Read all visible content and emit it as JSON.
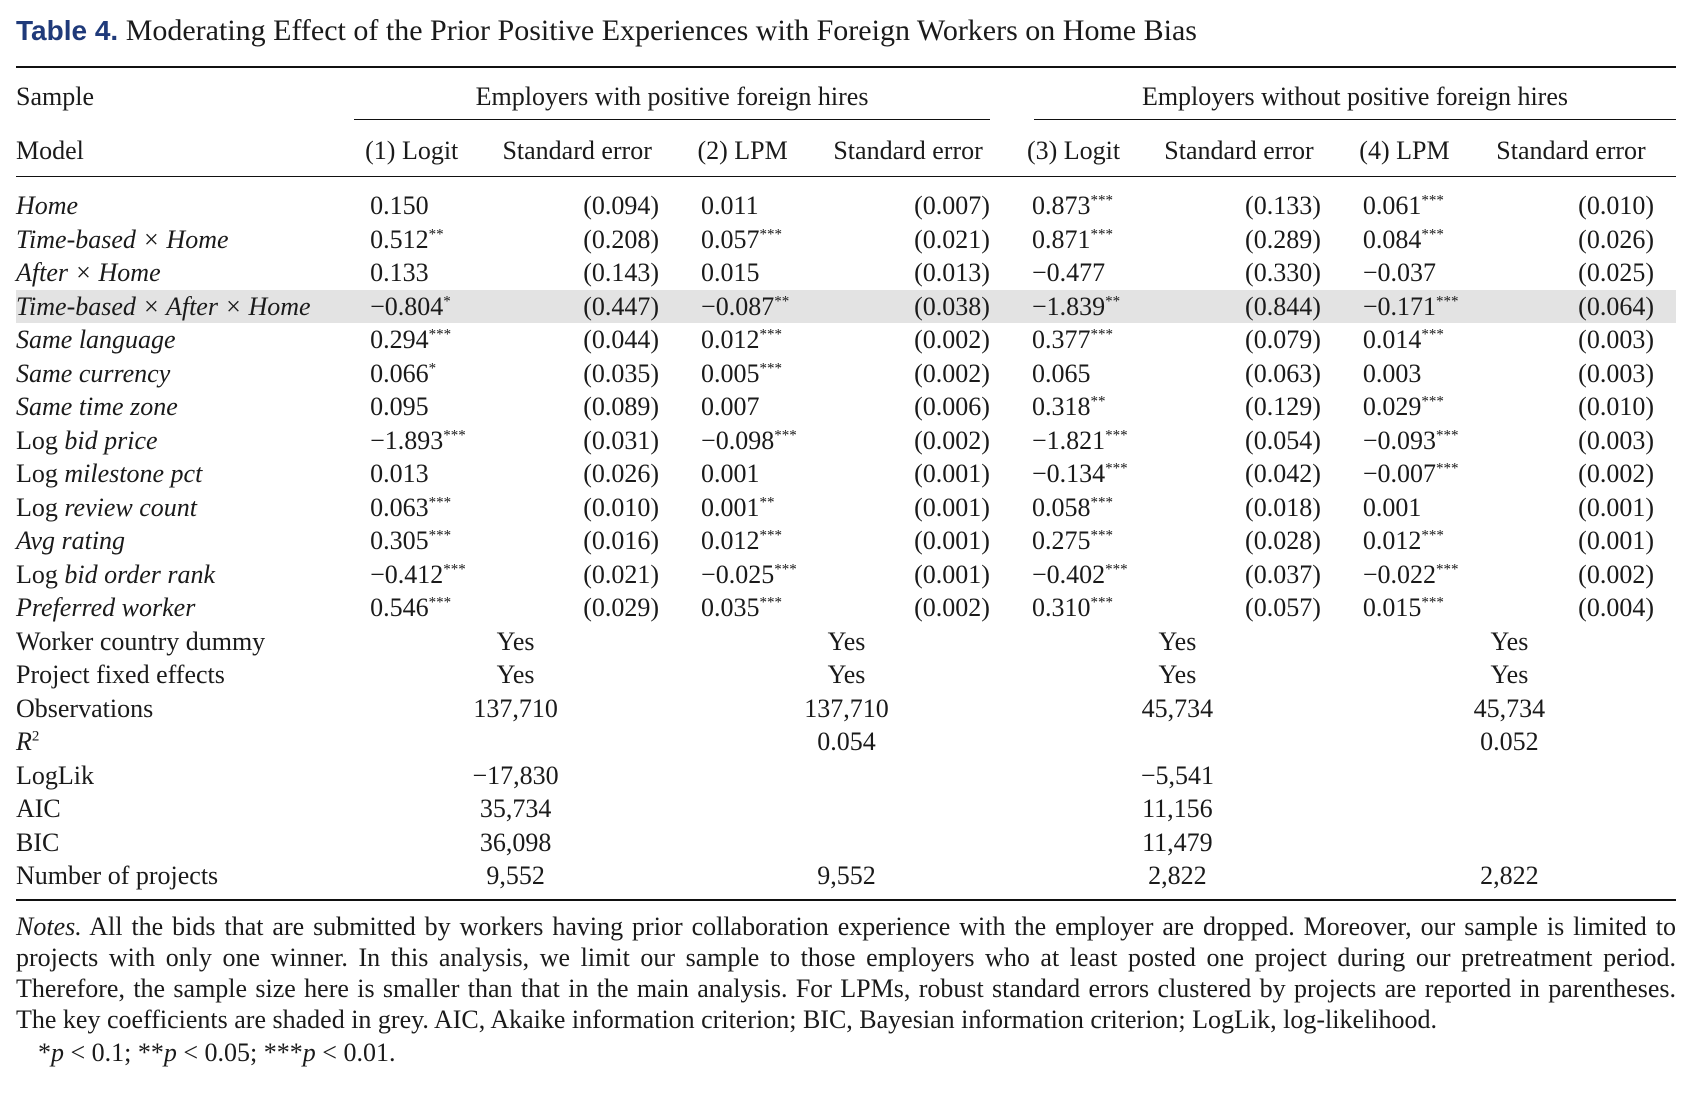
{
  "caption": {
    "label": "Table 4.",
    "title": "Moderating Effect of the Prior Positive Experiences with Foreign Workers on Home Bias"
  },
  "header": {
    "sample_label": "Sample",
    "group1": "Employers with positive foreign hires",
    "group2": "Employers without positive foreign hires",
    "model_label": "Model",
    "columns": [
      "(1) Logit",
      "Standard error",
      "(2) LPM",
      "Standard error",
      "(3) Logit",
      "Standard error",
      "(4) LPM",
      "Standard error"
    ]
  },
  "rows": [
    {
      "label": "Home",
      "v": [
        "0.150",
        "(0.094)",
        "0.011",
        "(0.007)",
        "0.873***",
        "(0.133)",
        "0.061***",
        "(0.010)"
      ]
    },
    {
      "label": "Time-based × Home",
      "v": [
        "0.512**",
        "(0.208)",
        "0.057***",
        "(0.021)",
        "0.871***",
        "(0.289)",
        "0.084***",
        "(0.026)"
      ]
    },
    {
      "label": "After × Home",
      "v": [
        "0.133",
        "(0.143)",
        "0.015",
        "(0.013)",
        "−0.477",
        "(0.330)",
        "−0.037",
        "(0.025)"
      ]
    },
    {
      "label": "Time-based × After × Home",
      "v": [
        "−0.804*",
        "(0.447)",
        "−0.087**",
        "(0.038)",
        "−1.839**",
        "(0.844)",
        "−0.171***",
        "(0.064)"
      ]
    },
    {
      "label": "Same language",
      "v": [
        "0.294***",
        "(0.044)",
        "0.012***",
        "(0.002)",
        "0.377***",
        "(0.079)",
        "0.014***",
        "(0.003)"
      ]
    },
    {
      "label": "Same currency",
      "v": [
        "0.066*",
        "(0.035)",
        "0.005***",
        "(0.002)",
        "0.065",
        "(0.063)",
        "0.003",
        "(0.003)"
      ]
    },
    {
      "label": "Same time zone",
      "v": [
        "0.095",
        "(0.089)",
        "0.007",
        "(0.006)",
        "0.318**",
        "(0.129)",
        "0.029***",
        "(0.010)"
      ]
    },
    {
      "label_pre": "Log ",
      "label_it": "bid price",
      "v": [
        "−1.893***",
        "(0.031)",
        "−0.098***",
        "(0.002)",
        "−1.821***",
        "(0.054)",
        "−0.093***",
        "(0.003)"
      ]
    },
    {
      "label_pre": "Log ",
      "label_it": "milestone pct",
      "v": [
        "0.013",
        "(0.026)",
        "0.001",
        "(0.001)",
        "−0.134***",
        "(0.042)",
        "−0.007***",
        "(0.002)"
      ]
    },
    {
      "label_pre": "Log ",
      "label_it": "review count",
      "v": [
        "0.063***",
        "(0.010)",
        "0.001**",
        "(0.001)",
        "0.058***",
        "(0.018)",
        "0.001",
        "(0.001)"
      ]
    },
    {
      "label": "Avg rating",
      "v": [
        "0.305***",
        "(0.016)",
        "0.012***",
        "(0.001)",
        "0.275***",
        "(0.028)",
        "0.012***",
        "(0.001)"
      ]
    },
    {
      "label_pre": "Log ",
      "label_it": "bid order rank",
      "v": [
        "−0.412***",
        "(0.021)",
        "−0.025***",
        "(0.001)",
        "−0.402***",
        "(0.037)",
        "−0.022***",
        "(0.002)"
      ]
    },
    {
      "label": "Preferred worker",
      "v": [
        "0.546***",
        "(0.029)",
        "0.035***",
        "(0.002)",
        "0.310***",
        "(0.057)",
        "0.015***",
        "(0.004)"
      ]
    }
  ],
  "summary": [
    {
      "label": "Worker country dummy",
      "v": [
        "Yes",
        "Yes",
        "Yes",
        "Yes"
      ]
    },
    {
      "label": "Project fixed effects",
      "v": [
        "Yes",
        "Yes",
        "Yes",
        "Yes"
      ]
    },
    {
      "label": "Observations",
      "v": [
        "137,710",
        "137,710",
        "45,734",
        "45,734"
      ]
    },
    {
      "label": "R",
      "label_sup": "2",
      "v": [
        "",
        "0.054",
        "",
        "0.052"
      ]
    },
    {
      "label": "LogLik",
      "v": [
        "−17,830",
        "",
        "−5,541",
        ""
      ]
    },
    {
      "label": "AIC",
      "v": [
        "35,734",
        "",
        "11,156",
        ""
      ]
    },
    {
      "label": "BIC",
      "v": [
        "36,098",
        "",
        "11,479",
        ""
      ]
    },
    {
      "label": "Number of projects",
      "v": [
        "9,552",
        "9,552",
        "2,822",
        "2,822"
      ]
    }
  ],
  "notes": {
    "lead": "Notes.",
    "text": " All the bids that are submitted by workers having prior collaboration experience with the employer are dropped. Moreover, our sample is limited to projects with only one winner. In this analysis, we limit our sample to those employers who at least posted one project during our pretreatment period. Therefore, the sample size here is smaller than that in the main analysis. For LPMs, robust standard errors clustered by projects are reported in parentheses. The key coefficients are shaded in grey. AIC, Akaike information criterion; BIC, Bayesian information criterion; LogLik, log-likelihood.",
    "significance": "*p < 0.1; **p < 0.05; ***p < 0.01."
  }
}
